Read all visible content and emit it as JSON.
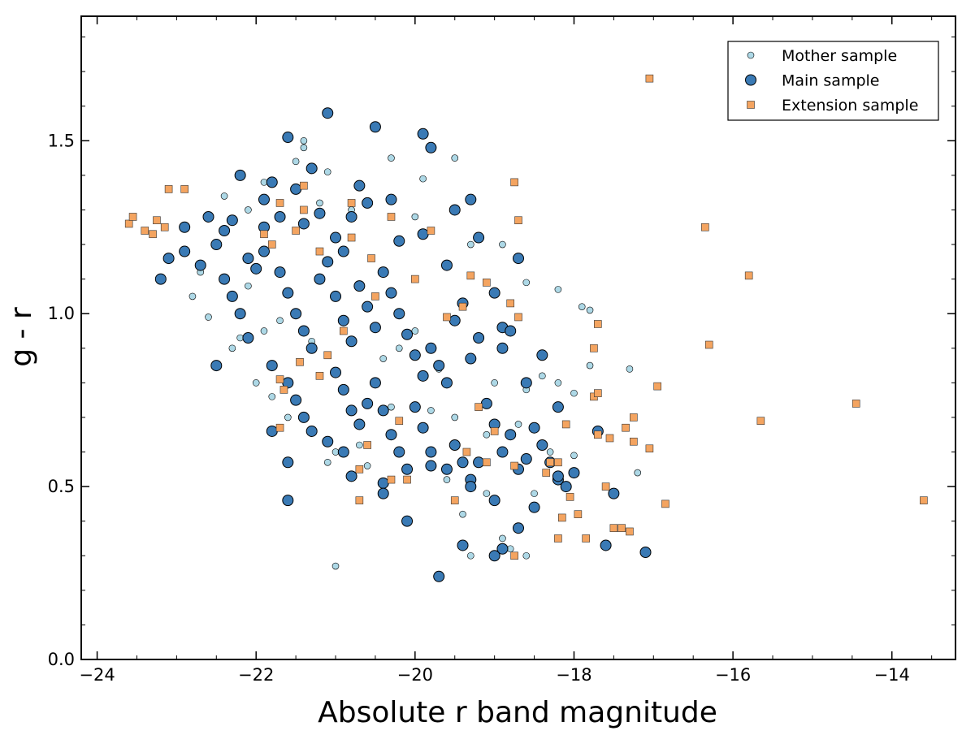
{
  "chart_data": {
    "type": "scatter",
    "title": "",
    "xlabel": "Absolute r band magnitude",
    "ylabel": "g - r",
    "xlim": [
      -24.2,
      -13.2
    ],
    "ylim": [
      0.0,
      1.86
    ],
    "xticks": [
      -24,
      -22,
      -20,
      -18,
      -16,
      -14
    ],
    "xtick_labels": [
      "−24",
      "−22",
      "−20",
      "−18",
      "−16",
      "−14"
    ],
    "yticks": [
      0.0,
      0.5,
      1.0,
      1.5
    ],
    "ytick_labels": [
      "0.0",
      "0.5",
      "1.0",
      "1.5"
    ],
    "grid": false,
    "legend_position": "top-right",
    "series": [
      {
        "name": "Mother sample",
        "marker": "small-circle",
        "color": "#add8e6",
        "points": [
          [
            -22.8,
            1.05
          ],
          [
            -22.4,
            1.34
          ],
          [
            -22.1,
            1.3
          ],
          [
            -21.9,
            1.38
          ],
          [
            -21.5,
            1.44
          ],
          [
            -21.4,
            1.5
          ],
          [
            -21.4,
            1.48
          ],
          [
            -21.2,
            1.32
          ],
          [
            -21.1,
            1.41
          ],
          [
            -20.8,
            1.3
          ],
          [
            -20.3,
            1.45
          ],
          [
            -20.0,
            1.28
          ],
          [
            -19.9,
            1.39
          ],
          [
            -19.5,
            1.45
          ],
          [
            -19.3,
            1.2
          ],
          [
            -19.2,
            1.22
          ],
          [
            -18.9,
            1.2
          ],
          [
            -18.6,
            1.09
          ],
          [
            -18.2,
            1.07
          ],
          [
            -17.9,
            1.02
          ],
          [
            -17.8,
            1.01
          ],
          [
            -17.3,
            0.84
          ],
          [
            -17.8,
            0.85
          ],
          [
            -18.0,
            0.77
          ],
          [
            -18.6,
            0.78
          ],
          [
            -19.0,
            0.8
          ],
          [
            -19.5,
            0.7
          ],
          [
            -19.8,
            0.72
          ],
          [
            -20.3,
            0.73
          ],
          [
            -20.7,
            0.62
          ],
          [
            -21.0,
            0.6
          ],
          [
            -21.1,
            0.57
          ],
          [
            -22.0,
            0.8
          ],
          [
            -22.3,
            0.9
          ],
          [
            -22.6,
            0.99
          ],
          [
            -21.9,
            0.95
          ],
          [
            -21.6,
            0.7
          ],
          [
            -20.6,
            0.56
          ],
          [
            -20.1,
            0.4
          ],
          [
            -19.4,
            0.42
          ],
          [
            -19.3,
            0.3
          ],
          [
            -18.9,
            0.35
          ],
          [
            -18.6,
            0.3
          ],
          [
            -18.8,
            0.32
          ],
          [
            -18.3,
            0.6
          ],
          [
            -18.0,
            0.59
          ],
          [
            -18.2,
            0.8
          ],
          [
            -18.4,
            0.82
          ],
          [
            -18.7,
            0.68
          ],
          [
            -19.1,
            0.48
          ],
          [
            -19.6,
            0.52
          ],
          [
            -20.0,
            0.95
          ],
          [
            -20.4,
            0.87
          ],
          [
            -20.9,
            0.95
          ],
          [
            -21.3,
            0.92
          ],
          [
            -21.7,
            0.98
          ],
          [
            -22.1,
            1.08
          ],
          [
            -22.5,
            1.2
          ],
          [
            -22.7,
            1.12
          ],
          [
            -21.0,
            0.27
          ],
          [
            -19.1,
            0.65
          ],
          [
            -18.5,
            0.48
          ],
          [
            -17.2,
            0.54
          ],
          [
            -19.7,
            0.84
          ],
          [
            -20.2,
            0.9
          ],
          [
            -21.8,
            0.76
          ],
          [
            -22.2,
            0.93
          ]
        ]
      },
      {
        "name": "Main sample",
        "marker": "large-circle",
        "color": "#3a7ab5",
        "points": [
          [
            -23.2,
            1.1
          ],
          [
            -23.1,
            1.16
          ],
          [
            -22.9,
            1.25
          ],
          [
            -22.9,
            1.18
          ],
          [
            -22.7,
            1.14
          ],
          [
            -22.6,
            1.28
          ],
          [
            -22.5,
            1.2
          ],
          [
            -22.4,
            1.24
          ],
          [
            -22.3,
            1.27
          ],
          [
            -22.2,
            1.4
          ],
          [
            -22.1,
            1.16
          ],
          [
            -22.0,
            1.13
          ],
          [
            -21.9,
            1.33
          ],
          [
            -21.9,
            1.25
          ],
          [
            -21.8,
            1.38
          ],
          [
            -21.7,
            1.28
          ],
          [
            -21.6,
            1.51
          ],
          [
            -21.5,
            1.36
          ],
          [
            -21.4,
            1.26
          ],
          [
            -21.3,
            1.42
          ],
          [
            -21.2,
            1.29
          ],
          [
            -21.1,
            1.58
          ],
          [
            -21.0,
            1.22
          ],
          [
            -20.9,
            1.18
          ],
          [
            -20.8,
            1.28
          ],
          [
            -20.7,
            1.37
          ],
          [
            -20.6,
            1.32
          ],
          [
            -20.5,
            1.54
          ],
          [
            -20.3,
            1.33
          ],
          [
            -20.2,
            1.21
          ],
          [
            -19.9,
            1.52
          ],
          [
            -19.8,
            1.48
          ],
          [
            -19.5,
            1.3
          ],
          [
            -19.3,
            1.33
          ],
          [
            -19.2,
            1.22
          ],
          [
            -18.7,
            1.16
          ],
          [
            -19.6,
            1.14
          ],
          [
            -19.9,
            1.23
          ],
          [
            -22.4,
            1.1
          ],
          [
            -22.3,
            1.05
          ],
          [
            -22.2,
            1.0
          ],
          [
            -22.1,
            0.93
          ],
          [
            -21.9,
            1.18
          ],
          [
            -21.7,
            1.12
          ],
          [
            -21.6,
            1.06
          ],
          [
            -21.5,
            1.0
          ],
          [
            -21.4,
            0.95
          ],
          [
            -21.3,
            0.9
          ],
          [
            -21.2,
            1.1
          ],
          [
            -21.1,
            1.15
          ],
          [
            -21.0,
            1.05
          ],
          [
            -20.9,
            0.98
          ],
          [
            -20.8,
            0.92
          ],
          [
            -20.7,
            1.08
          ],
          [
            -20.6,
            1.02
          ],
          [
            -20.5,
            0.96
          ],
          [
            -20.4,
            1.12
          ],
          [
            -20.3,
            1.06
          ],
          [
            -20.2,
            1.0
          ],
          [
            -20.1,
            0.94
          ],
          [
            -20.0,
            0.88
          ],
          [
            -19.9,
            0.82
          ],
          [
            -19.8,
            0.9
          ],
          [
            -19.7,
            0.85
          ],
          [
            -19.6,
            0.8
          ],
          [
            -19.5,
            0.98
          ],
          [
            -19.4,
            1.03
          ],
          [
            -19.3,
            0.87
          ],
          [
            -19.2,
            0.93
          ],
          [
            -19.0,
            1.06
          ],
          [
            -18.9,
            0.96
          ],
          [
            -18.9,
            0.9
          ],
          [
            -18.8,
            0.95
          ],
          [
            -18.6,
            0.8
          ],
          [
            -18.4,
            0.88
          ],
          [
            -18.2,
            0.73
          ],
          [
            -21.8,
            0.85
          ],
          [
            -21.6,
            0.8
          ],
          [
            -21.5,
            0.75
          ],
          [
            -21.4,
            0.7
          ],
          [
            -21.3,
            0.66
          ],
          [
            -21.1,
            0.63
          ],
          [
            -21.0,
            0.83
          ],
          [
            -20.9,
            0.78
          ],
          [
            -20.8,
            0.72
          ],
          [
            -20.7,
            0.68
          ],
          [
            -20.6,
            0.74
          ],
          [
            -20.5,
            0.8
          ],
          [
            -20.4,
            0.72
          ],
          [
            -20.3,
            0.65
          ],
          [
            -20.2,
            0.6
          ],
          [
            -20.1,
            0.55
          ],
          [
            -20.0,
            0.73
          ],
          [
            -19.9,
            0.67
          ],
          [
            -19.8,
            0.6
          ],
          [
            -19.6,
            0.55
          ],
          [
            -19.5,
            0.62
          ],
          [
            -19.4,
            0.57
          ],
          [
            -19.3,
            0.52
          ],
          [
            -19.2,
            0.57
          ],
          [
            -19.1,
            0.74
          ],
          [
            -19.0,
            0.68
          ],
          [
            -18.9,
            0.6
          ],
          [
            -18.8,
            0.65
          ],
          [
            -18.7,
            0.55
          ],
          [
            -18.6,
            0.58
          ],
          [
            -18.5,
            0.67
          ],
          [
            -18.4,
            0.62
          ],
          [
            -18.3,
            0.57
          ],
          [
            -18.2,
            0.52
          ],
          [
            -18.1,
            0.5
          ],
          [
            -18.0,
            0.54
          ],
          [
            -17.7,
            0.66
          ],
          [
            -17.5,
            0.48
          ],
          [
            -17.6,
            0.33
          ],
          [
            -17.1,
            0.31
          ],
          [
            -18.7,
            0.38
          ],
          [
            -18.5,
            0.44
          ],
          [
            -18.2,
            0.53
          ],
          [
            -19.0,
            0.3
          ],
          [
            -19.0,
            0.46
          ],
          [
            -19.4,
            0.33
          ],
          [
            -19.3,
            0.5
          ],
          [
            -19.7,
            0.24
          ],
          [
            -20.1,
            0.4
          ],
          [
            -20.4,
            0.51
          ],
          [
            -20.4,
            0.48
          ],
          [
            -20.8,
            0.53
          ],
          [
            -21.6,
            0.46
          ],
          [
            -21.6,
            0.57
          ],
          [
            -21.8,
            0.66
          ],
          [
            -22.5,
            0.85
          ],
          [
            -20.9,
            0.6
          ],
          [
            -19.8,
            0.56
          ],
          [
            -18.9,
            0.32
          ]
        ]
      },
      {
        "name": "Extension sample",
        "marker": "square",
        "color": "#f4a460",
        "points": [
          [
            -23.6,
            1.26
          ],
          [
            -23.55,
            1.28
          ],
          [
            -23.4,
            1.24
          ],
          [
            -23.3,
            1.23
          ],
          [
            -23.25,
            1.27
          ],
          [
            -23.15,
            1.25
          ],
          [
            -23.1,
            1.36
          ],
          [
            -22.9,
            1.36
          ],
          [
            -21.7,
            1.32
          ],
          [
            -21.4,
            1.37
          ],
          [
            -20.8,
            1.32
          ],
          [
            -20.3,
            1.28
          ],
          [
            -19.8,
            1.24
          ],
          [
            -18.75,
            1.38
          ],
          [
            -18.7,
            1.27
          ],
          [
            -16.35,
            1.25
          ],
          [
            -15.8,
            1.11
          ],
          [
            -16.3,
            0.91
          ],
          [
            -15.65,
            0.69
          ],
          [
            -14.45,
            0.74
          ],
          [
            -13.6,
            0.46
          ],
          [
            -17.05,
            1.68
          ],
          [
            -16.95,
            0.79
          ],
          [
            -17.7,
            0.97
          ],
          [
            -17.75,
            0.9
          ],
          [
            -17.75,
            0.76
          ],
          [
            -17.7,
            0.77
          ],
          [
            -17.7,
            0.65
          ],
          [
            -17.35,
            0.67
          ],
          [
            -17.25,
            0.7
          ],
          [
            -17.25,
            0.63
          ],
          [
            -17.05,
            0.61
          ],
          [
            -16.85,
            0.45
          ],
          [
            -17.55,
            0.64
          ],
          [
            -17.6,
            0.5
          ],
          [
            -17.4,
            0.38
          ],
          [
            -17.3,
            0.37
          ],
          [
            -17.5,
            0.38
          ],
          [
            -17.85,
            0.35
          ],
          [
            -17.95,
            0.42
          ],
          [
            -18.05,
            0.47
          ],
          [
            -18.15,
            0.41
          ],
          [
            -18.2,
            0.35
          ],
          [
            -18.3,
            0.57
          ],
          [
            -18.2,
            0.57
          ],
          [
            -18.35,
            0.54
          ],
          [
            -18.1,
            0.68
          ],
          [
            -18.75,
            0.3
          ],
          [
            -18.75,
            0.56
          ],
          [
            -18.8,
            1.03
          ],
          [
            -18.7,
            0.99
          ],
          [
            -19.5,
            0.46
          ],
          [
            -19.35,
            0.6
          ],
          [
            -19.2,
            0.73
          ],
          [
            -19.1,
            0.57
          ],
          [
            -19.0,
            0.66
          ],
          [
            -19.3,
            1.11
          ],
          [
            -19.1,
            1.09
          ],
          [
            -19.4,
            1.02
          ],
          [
            -19.6,
            0.99
          ],
          [
            -20.2,
            0.69
          ],
          [
            -20.1,
            0.52
          ],
          [
            -20.3,
            0.52
          ],
          [
            -20.7,
            0.46
          ],
          [
            -20.7,
            0.55
          ],
          [
            -20.6,
            0.62
          ],
          [
            -20.9,
            0.95
          ],
          [
            -21.1,
            0.88
          ],
          [
            -21.45,
            0.86
          ],
          [
            -21.7,
            0.81
          ],
          [
            -21.65,
            0.78
          ],
          [
            -21.7,
            0.67
          ],
          [
            -21.2,
            0.82
          ],
          [
            -20.0,
            1.1
          ],
          [
            -20.5,
            1.05
          ],
          [
            -20.55,
            1.16
          ],
          [
            -21.9,
            1.23
          ],
          [
            -21.8,
            1.2
          ],
          [
            -21.5,
            1.24
          ],
          [
            -21.2,
            1.18
          ],
          [
            -20.8,
            1.22
          ],
          [
            -21.4,
            1.3
          ]
        ]
      }
    ]
  }
}
